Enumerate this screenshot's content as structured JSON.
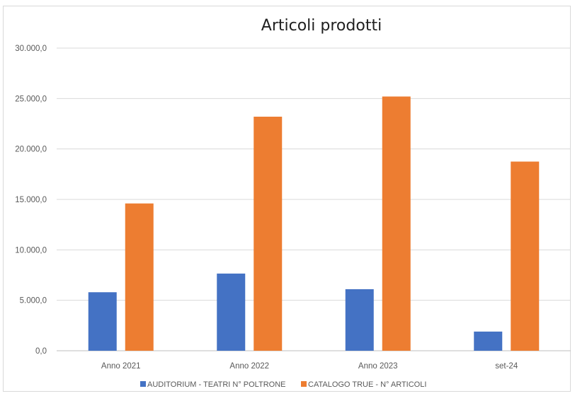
{
  "chart_data": {
    "type": "bar",
    "title": "Articoli prodotti",
    "categories": [
      "Anno 2021",
      "Anno 2022",
      "Anno 2023",
      "set-24"
    ],
    "series": [
      {
        "name": "AUDITORIUM - TEATRI N° POLTRONE",
        "color": "#4472C4",
        "values": [
          5800,
          7650,
          6100,
          1900
        ]
      },
      {
        "name": "CATALOGO TRUE - N° ARTICOLI",
        "color": "#ED7D31",
        "values": [
          14600,
          23200,
          25200,
          18750
        ]
      }
    ],
    "ylim": [
      0,
      30000
    ],
    "yticks": [
      0,
      5000,
      10000,
      15000,
      20000,
      25000,
      30000
    ],
    "ytick_labels": [
      "0,0",
      "5.000,0",
      "10.000,0",
      "15.000,0",
      "20.000,0",
      "25.000,0",
      "30.000,0"
    ],
    "xlabel": "",
    "ylabel": "",
    "grid": true,
    "legend_position": "bottom"
  }
}
